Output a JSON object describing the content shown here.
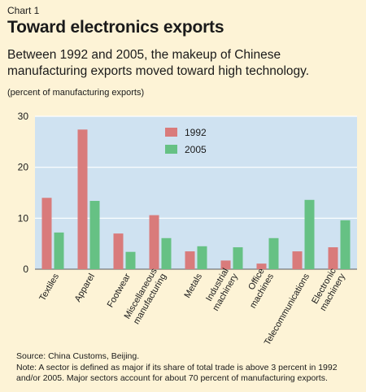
{
  "header": {
    "chart_label": "Chart 1",
    "title": "Toward electronics exports",
    "subtitle": "Between 1992 and 2005, the makeup of Chinese manufacturing exports moved toward high technology.",
    "unit_note": "(percent of manufacturing exports)"
  },
  "footer": {
    "source": "Source: China Customs, Beijing.",
    "note": "Note: A sector is defined as major if its share of total trade is above 3 percent in 1992 and/or 2005. Major sectors account for about 70 percent of manufacturing exports."
  },
  "colors": {
    "background": "#fdf3d6",
    "plot_area": "#cfe2f1",
    "gridline": "#ffffff",
    "series_1992": "#d97b7b",
    "series_2005": "#66c184"
  },
  "chart_data": {
    "type": "bar",
    "categories": [
      [
        "Textiles"
      ],
      [
        "Apparel"
      ],
      [
        "Footwear"
      ],
      [
        "Miscellaneous",
        "manufacturing"
      ],
      [
        "Metals"
      ],
      [
        "Industrial",
        "machinery"
      ],
      [
        "Office",
        "machines"
      ],
      [
        "Telecommunications"
      ],
      [
        "Electronic",
        "machinery"
      ]
    ],
    "series": [
      {
        "name": "1992",
        "values": [
          14.0,
          27.4,
          7.0,
          10.6,
          3.5,
          1.7,
          1.1,
          3.5,
          4.3
        ]
      },
      {
        "name": "2005",
        "values": [
          7.2,
          13.4,
          3.4,
          6.1,
          4.5,
          4.3,
          6.1,
          13.6,
          9.6
        ]
      }
    ],
    "ylim": [
      0,
      30
    ],
    "yticks": [
      0,
      10,
      20,
      30
    ],
    "grid": true,
    "legend_position": "top-center"
  }
}
